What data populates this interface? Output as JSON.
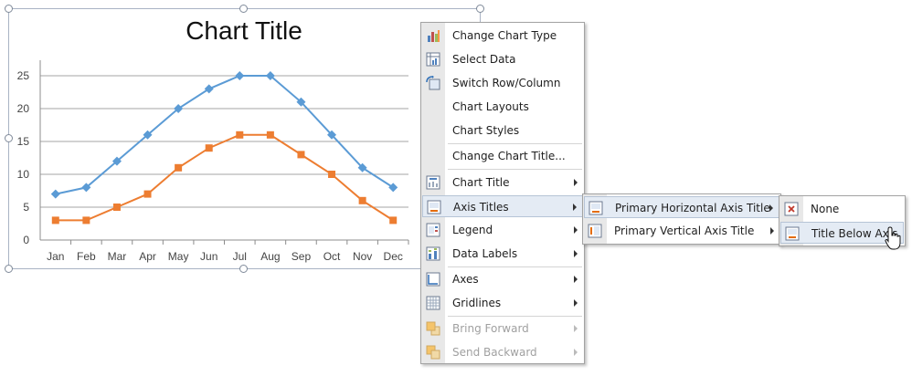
{
  "chart_data": {
    "type": "line",
    "title": "Chart Title",
    "categories": [
      "Jan",
      "Feb",
      "Mar",
      "Apr",
      "May",
      "Jun",
      "Jul",
      "Aug",
      "Sep",
      "Oct",
      "Nov",
      "Dec"
    ],
    "series": [
      {
        "values": [
          7,
          8,
          12,
          16,
          20,
          23,
          25,
          25,
          21,
          16,
          11,
          8
        ],
        "color": "#5b9bd5",
        "marker": "diamond"
      },
      {
        "values": [
          3,
          3,
          5,
          7,
          11,
          14,
          16,
          16,
          13,
          10,
          6,
          3
        ],
        "color": "#ed7d31",
        "marker": "square"
      }
    ],
    "yticks": [
      "0",
      "5",
      "10",
      "15",
      "20",
      "25"
    ],
    "ylim": [
      0,
      25
    ],
    "grid": true,
    "legend": "none"
  },
  "context_menu": {
    "items": [
      {
        "label": "Change Chart Type",
        "icon": "chart-type-icon"
      },
      {
        "label": "Select Data",
        "icon": "select-data-icon"
      },
      {
        "label": "Switch Row/Column",
        "icon": "switch-row-column-icon"
      },
      {
        "label": "Chart Layouts"
      },
      {
        "label": "Chart Styles"
      },
      {
        "label": "Change Chart Title..."
      },
      {
        "label": "Chart Title",
        "icon": "chart-title-icon",
        "submenu": true
      },
      {
        "label": "Axis Titles",
        "icon": "axis-titles-icon",
        "submenu": true,
        "highlighted": true
      },
      {
        "label": "Legend",
        "icon": "legend-icon",
        "submenu": true
      },
      {
        "label": "Data Labels",
        "icon": "data-labels-icon",
        "submenu": true
      },
      {
        "label": "Axes",
        "icon": "axes-icon",
        "submenu": true
      },
      {
        "label": "Gridlines",
        "icon": "gridlines-icon",
        "submenu": true
      },
      {
        "label": "Bring Forward",
        "icon": "bring-forward-icon",
        "submenu": true,
        "disabled": true
      },
      {
        "label": "Send Backward",
        "icon": "send-backward-icon",
        "submenu": true,
        "disabled": true
      }
    ]
  },
  "axis_titles_submenu": {
    "items": [
      {
        "label": "Primary Horizontal Axis Title",
        "icon": "horizontal-axis-title-icon",
        "highlighted": true
      },
      {
        "label": "Primary Vertical Axis Title",
        "icon": "vertical-axis-title-icon"
      }
    ]
  },
  "horizontal_axis_submenu": {
    "items": [
      {
        "label": "None",
        "icon": "none-icon"
      },
      {
        "label": "Title Below Axis",
        "icon": "title-below-axis-icon",
        "highlighted": true
      }
    ]
  }
}
